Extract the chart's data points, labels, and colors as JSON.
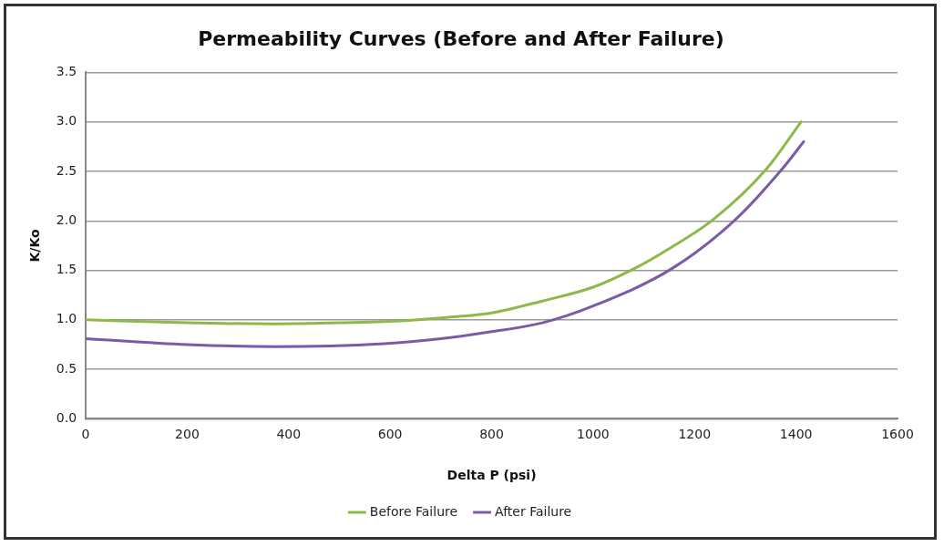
{
  "chart_data": {
    "type": "line",
    "title": "Permeability Curves (Before and After Failure)",
    "xlabel": "Delta P (psi)",
    "ylabel": "K/Ko",
    "series": [
      {
        "name": "Before Failure",
        "color": "#8db94a",
        "x": [
          0,
          200,
          374,
          500,
          620,
          700,
          800,
          900,
          1000,
          1082,
          1150,
          1236,
          1341,
          1410
        ],
        "values": [
          1.0,
          0.97,
          0.96,
          0.97,
          0.99,
          1.02,
          1.07,
          1.19,
          1.33,
          1.52,
          1.72,
          2.01,
          2.52,
          3.0
        ]
      },
      {
        "name": "After Failure",
        "color": "#7b5ba6",
        "x": [
          0,
          200,
          374,
          588,
          700,
          800,
          900,
          1000,
          1156,
          1280,
          1372,
          1415
        ],
        "values": [
          0.81,
          0.75,
          0.73,
          0.76,
          0.81,
          0.88,
          0.97,
          1.14,
          1.52,
          2.01,
          2.52,
          2.8
        ]
      }
    ],
    "xlim": [
      0,
      1600
    ],
    "xticks": [
      0,
      200,
      400,
      600,
      800,
      1000,
      1200,
      1400,
      1600
    ],
    "ylim": [
      0,
      3.5
    ],
    "yticks": [
      {
        "value": 0,
        "label": "0.0"
      },
      {
        "value": 0.5,
        "label": "0.5"
      },
      {
        "value": 1,
        "label": "1.0"
      },
      {
        "value": 1.5,
        "label": "1.5"
      },
      {
        "value": 2,
        "label": "2.0"
      },
      {
        "value": 2.5,
        "label": "2.5"
      },
      {
        "value": 3,
        "label": "3.0"
      },
      {
        "value": 3.5,
        "label": "3.5"
      }
    ],
    "grid": "y",
    "legend": "bottom"
  }
}
